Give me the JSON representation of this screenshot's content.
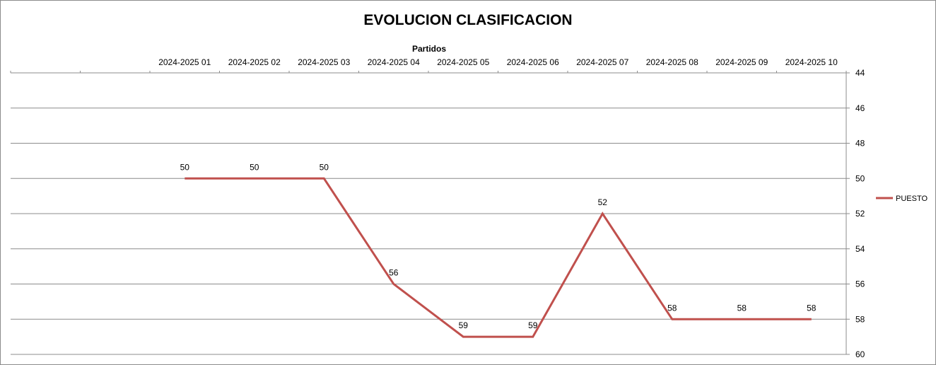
{
  "chart_data": {
    "type": "line",
    "title": "EVOLUCION CLASIFICACION",
    "xlabel": "Partidos",
    "ylabel": "",
    "categories": [
      "",
      "",
      "2024-2025 01",
      "2024-2025 02",
      "2024-2025 03",
      "2024-2025 04",
      "2024-2025 05",
      "2024-2025 06",
      "2024-2025 07",
      "2024-2025 08",
      "2024-2025 09",
      "2024-2025 10"
    ],
    "series": [
      {
        "name": "PUESTO",
        "color": "#c0504d",
        "values": [
          null,
          null,
          50,
          50,
          50,
          56,
          59,
          59,
          52,
          58,
          58,
          58
        ]
      }
    ],
    "ylim": [
      44,
      60
    ],
    "ystep": 2,
    "y_reversed": true,
    "x_axis_position": "top",
    "y_axis_position": "right",
    "grid": true,
    "legend": "right",
    "data_labels": true
  }
}
